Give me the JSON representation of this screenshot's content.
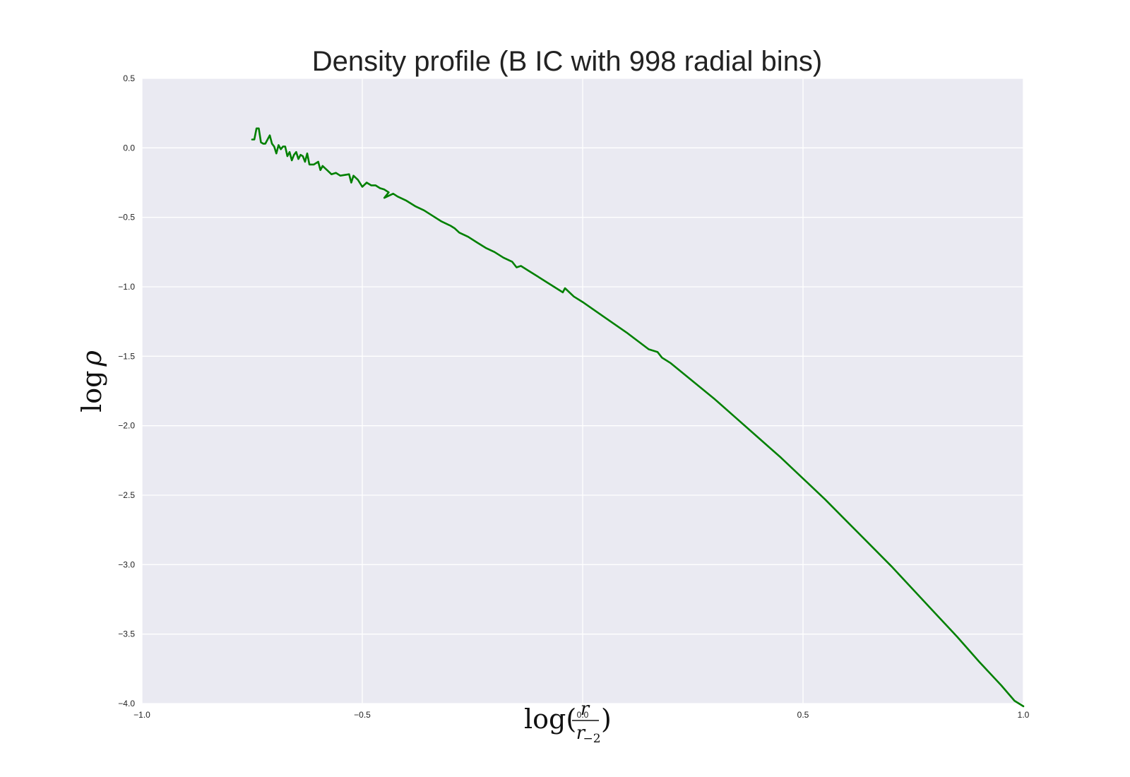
{
  "chart_data": {
    "type": "line",
    "title": "Density profile (B IC with 998 radial bins)",
    "xlabel": "log(r / r₋₂)",
    "ylabel": "log ρ",
    "xlim": [
      -1.0,
      1.0
    ],
    "ylim": [
      -4.0,
      0.5
    ],
    "xticks": [
      -1.0,
      -0.5,
      0.0,
      0.5,
      1.0
    ],
    "xtick_labels": [
      "−1.0",
      "−0.5",
      "0.0",
      "0.5",
      "1.0"
    ],
    "yticks": [
      0.5,
      0.0,
      -0.5,
      -1.0,
      -1.5,
      -2.0,
      -2.5,
      -3.0,
      -3.5,
      -4.0
    ],
    "ytick_labels": [
      "0.5",
      "0.0",
      "−0.5",
      "−1.0",
      "−1.5",
      "−2.0",
      "−2.5",
      "−3.0",
      "−3.5",
      "−4.0"
    ],
    "grid": true,
    "background_color": "#eaeaf2",
    "grid_color": "#ffffff",
    "series": [
      {
        "color": "#008000",
        "x": [
          -0.75,
          -0.745,
          -0.74,
          -0.735,
          -0.73,
          -0.725,
          -0.72,
          -0.71,
          -0.705,
          -0.7,
          -0.695,
          -0.69,
          -0.685,
          -0.68,
          -0.675,
          -0.67,
          -0.665,
          -0.66,
          -0.655,
          -0.65,
          -0.645,
          -0.64,
          -0.635,
          -0.63,
          -0.625,
          -0.62,
          -0.615,
          -0.61,
          -0.6,
          -0.595,
          -0.59,
          -0.58,
          -0.57,
          -0.56,
          -0.55,
          -0.53,
          -0.525,
          -0.52,
          -0.51,
          -0.5,
          -0.49,
          -0.48,
          -0.47,
          -0.46,
          -0.45,
          -0.44,
          -0.45,
          -0.43,
          -0.42,
          -0.4,
          -0.38,
          -0.36,
          -0.34,
          -0.32,
          -0.3,
          -0.29,
          -0.28,
          -0.26,
          -0.24,
          -0.22,
          -0.2,
          -0.18,
          -0.16,
          -0.15,
          -0.14,
          -0.12,
          -0.1,
          -0.08,
          -0.06,
          -0.045,
          -0.04,
          -0.02,
          0.0,
          0.05,
          0.1,
          0.15,
          0.17,
          0.18,
          0.2,
          0.25,
          0.3,
          0.35,
          0.4,
          0.45,
          0.5,
          0.55,
          0.6,
          0.65,
          0.7,
          0.75,
          0.8,
          0.85,
          0.9,
          0.95,
          0.98,
          1.0
        ],
        "y": [
          0.06,
          0.06,
          0.14,
          0.14,
          0.04,
          0.03,
          0.03,
          0.09,
          0.03,
          0.01,
          -0.04,
          0.02,
          -0.01,
          0.01,
          0.01,
          -0.06,
          -0.03,
          -0.09,
          -0.05,
          -0.03,
          -0.08,
          -0.05,
          -0.06,
          -0.1,
          -0.04,
          -0.12,
          -0.12,
          -0.12,
          -0.1,
          -0.16,
          -0.13,
          -0.16,
          -0.19,
          -0.18,
          -0.2,
          -0.19,
          -0.25,
          -0.2,
          -0.23,
          -0.28,
          -0.25,
          -0.27,
          -0.27,
          -0.29,
          -0.3,
          -0.32,
          -0.36,
          -0.33,
          -0.35,
          -0.38,
          -0.42,
          -0.45,
          -0.49,
          -0.53,
          -0.56,
          -0.58,
          -0.61,
          -0.64,
          -0.68,
          -0.72,
          -0.75,
          -0.79,
          -0.82,
          -0.86,
          -0.85,
          -0.89,
          -0.93,
          -0.97,
          -1.01,
          -1.04,
          -1.01,
          -1.07,
          -1.11,
          -1.22,
          -1.33,
          -1.45,
          -1.47,
          -1.51,
          -1.55,
          -1.68,
          -1.81,
          -1.95,
          -2.09,
          -2.23,
          -2.38,
          -2.53,
          -2.69,
          -2.85,
          -3.01,
          -3.18,
          -3.35,
          -3.52,
          -3.7,
          -3.87,
          -3.98,
          -4.02
        ]
      }
    ]
  }
}
